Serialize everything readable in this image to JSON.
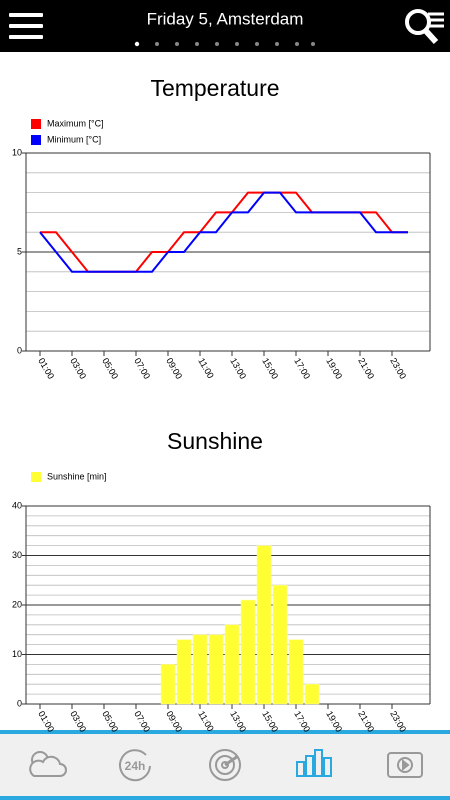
{
  "header": {
    "title": "Friday 5, Amsterdam"
  },
  "chart_data": [
    {
      "type": "line",
      "title": "Temperature",
      "categories": [
        "01:00",
        null,
        "03:00",
        null,
        "05:00",
        null,
        "07:00",
        null,
        "09:00",
        null,
        "11:00",
        null,
        "13:00",
        null,
        "15:00",
        null,
        "17:00",
        null,
        "19:00",
        null,
        "21:00",
        null,
        "23:00",
        null
      ],
      "series": [
        {
          "name": "Maximum [°C]",
          "color": "#ff0000",
          "values": [
            6,
            6,
            5,
            4,
            4,
            4,
            4,
            5,
            5,
            6,
            6,
            7,
            7,
            8,
            8,
            8,
            8,
            7,
            7,
            7,
            7,
            7,
            6,
            6
          ]
        },
        {
          "name": "Minimum [°C]",
          "color": "#0000ff",
          "values": [
            6,
            5,
            4,
            4,
            4,
            4,
            4,
            4,
            5,
            5,
            6,
            6,
            7,
            7,
            8,
            8,
            7,
            7,
            7,
            7,
            7,
            6,
            6,
            6
          ]
        }
      ],
      "ylim": [
        0,
        10
      ],
      "yticks": [
        0,
        5,
        10
      ],
      "y_minor_ticks": [
        1,
        2,
        3,
        4,
        6,
        7,
        8,
        9
      ],
      "grid": true
    },
    {
      "type": "bar",
      "title": "Sunshine",
      "categories": [
        "01:00",
        null,
        "03:00",
        null,
        "05:00",
        null,
        "07:00",
        null,
        "09:00",
        null,
        "11:00",
        null,
        "13:00",
        null,
        "15:00",
        null,
        "17:00",
        null,
        "19:00",
        null,
        "21:00",
        null,
        "23:00",
        null
      ],
      "series": [
        {
          "name": "Sunshine [min]",
          "color": "#ffff33",
          "values": [
            0,
            0,
            0,
            0,
            0,
            0,
            0,
            0,
            8,
            13,
            14,
            14,
            16,
            21,
            32,
            24,
            13,
            4,
            0,
            0,
            0,
            0,
            0,
            0
          ]
        }
      ],
      "ylim": [
        0,
        40
      ],
      "yticks": [
        0,
        10,
        20,
        30,
        40
      ],
      "y_minor_ticks": [
        2,
        4,
        6,
        8,
        12,
        14,
        16,
        18,
        22,
        24,
        26,
        28,
        32,
        34,
        36,
        38
      ],
      "grid": true
    }
  ]
}
